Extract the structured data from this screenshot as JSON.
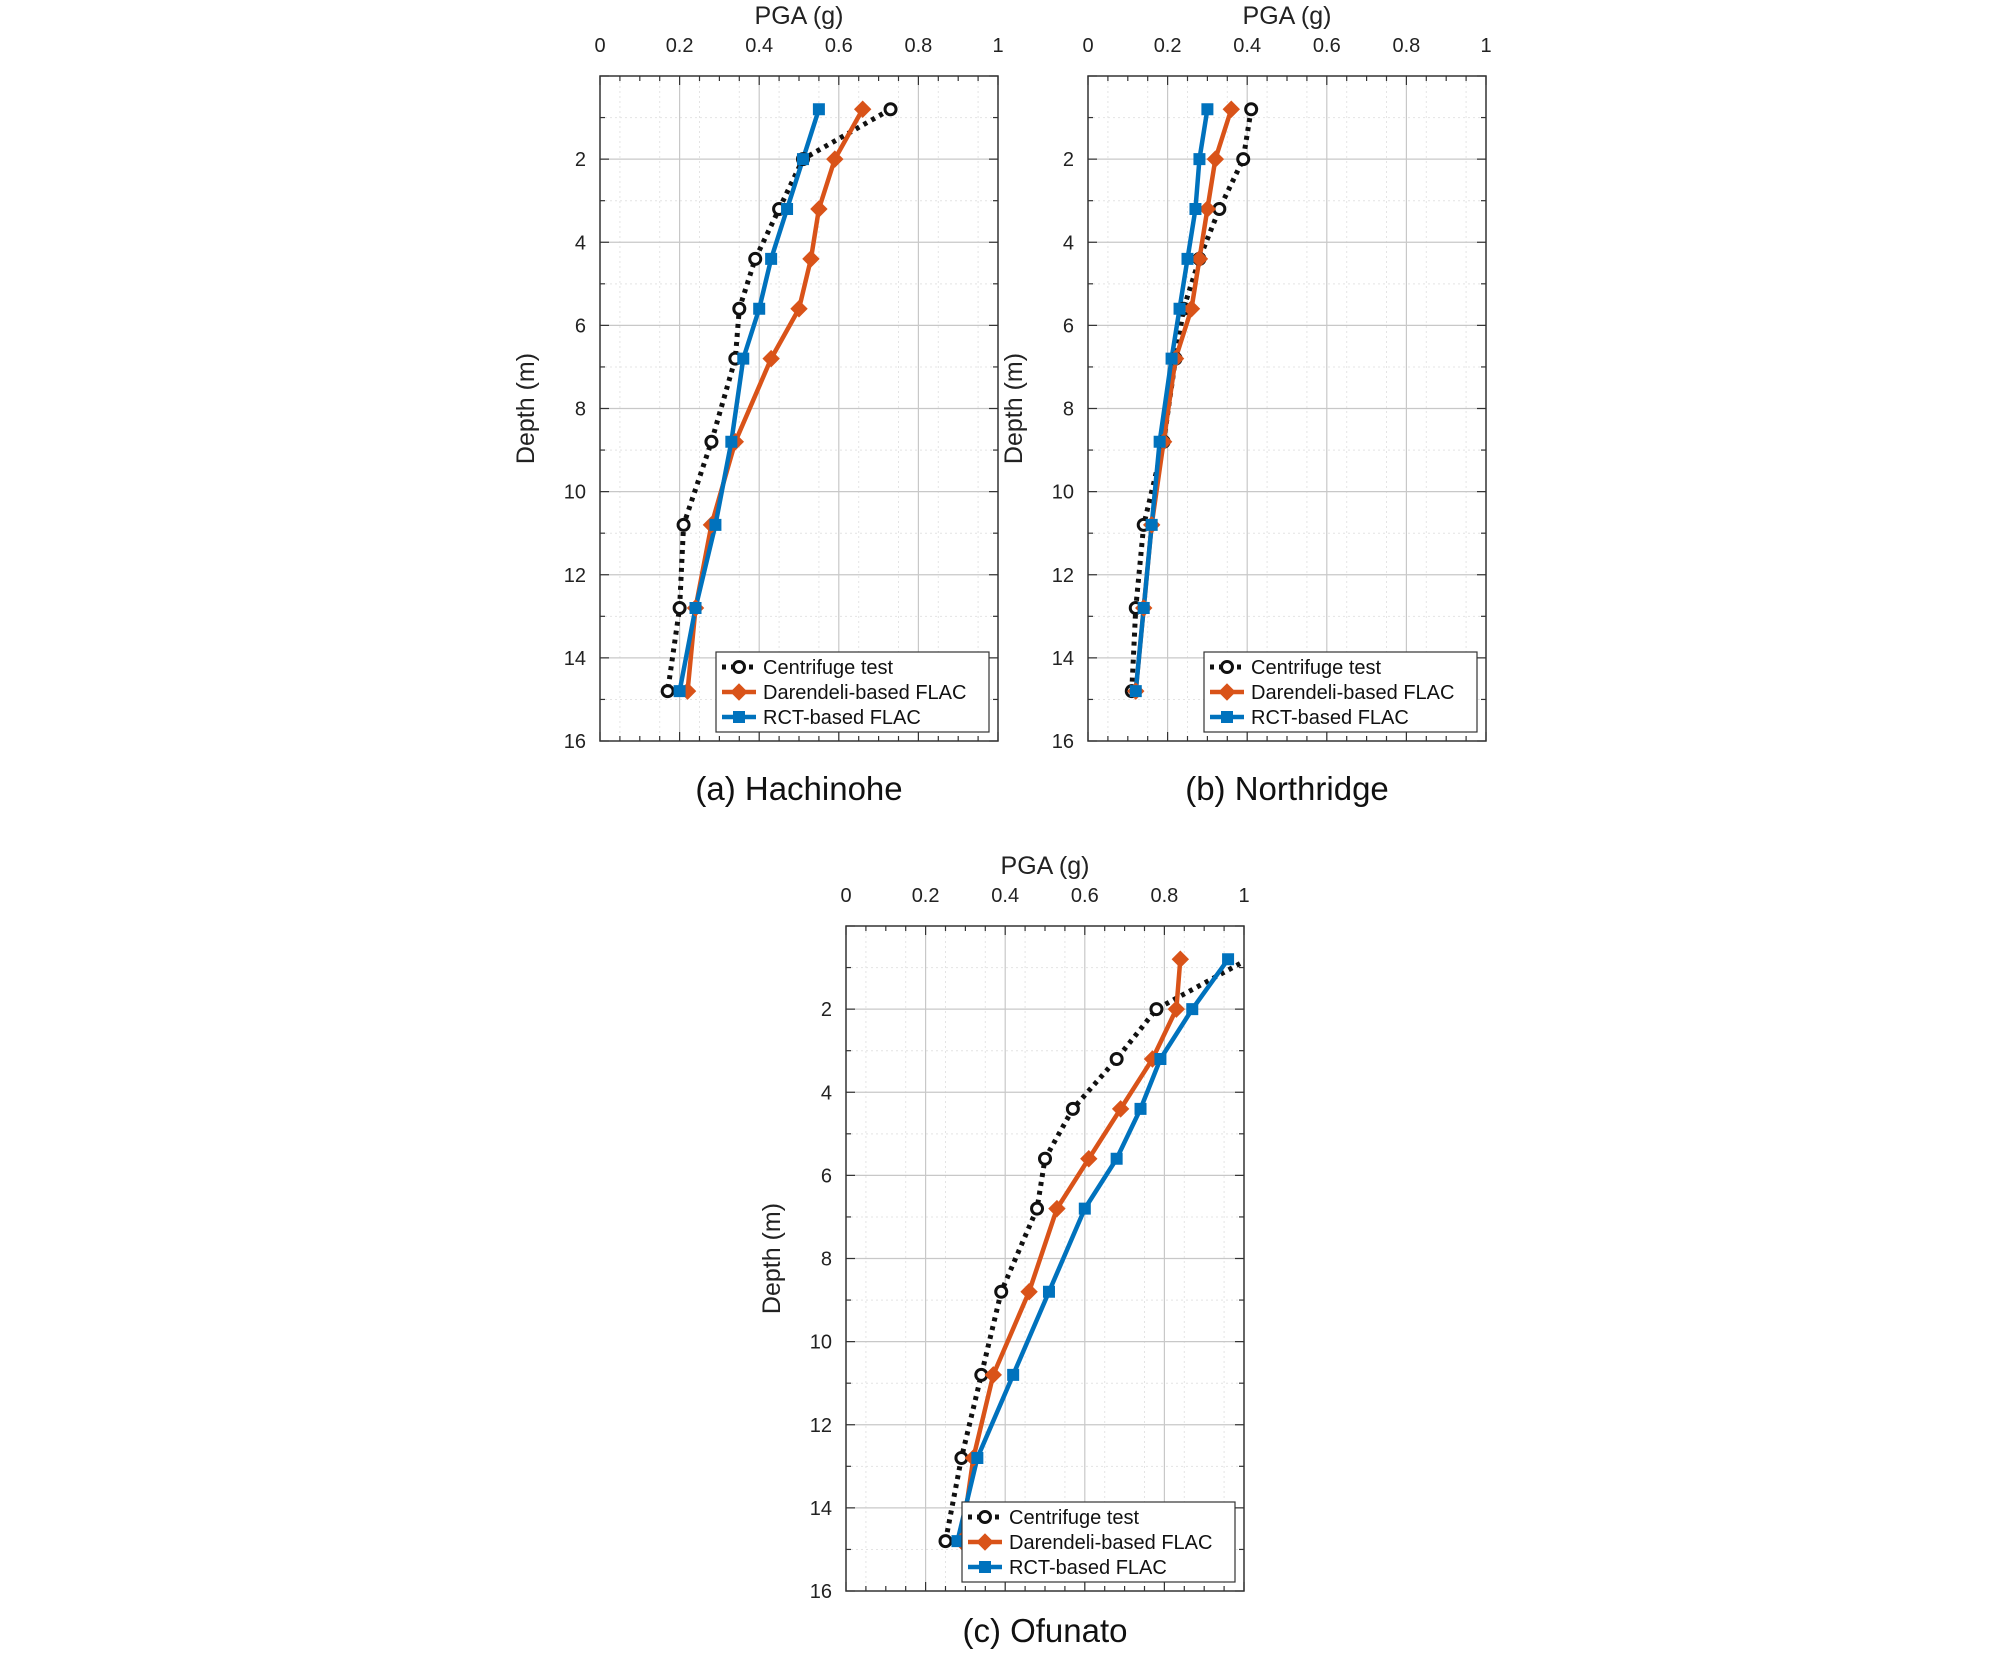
{
  "colors": {
    "centrifuge": "#111111",
    "darendeli": "#d95319",
    "rct": "#0072bd",
    "grid_major": "#c8c8c8",
    "grid_minor": "#e4e4e4",
    "axes": "#333333"
  },
  "chart_data": [
    {
      "type": "line",
      "caption": "(a)  Hachinohe",
      "xlabel": "PGA (g)",
      "ylabel": "Depth (m)",
      "xlim": [
        0,
        1
      ],
      "ylim": [
        0,
        16
      ],
      "y_reversed": true,
      "x_ticks": [
        "0",
        "0.2",
        "0.4",
        "0.6",
        "0.8",
        "1"
      ],
      "y_ticks": [
        "2",
        "4",
        "6",
        "8",
        "10",
        "12",
        "14",
        "16"
      ],
      "x_axis_position": "top",
      "grid": true,
      "legend_position": "bottom-right",
      "depths": [
        0.8,
        2.0,
        3.2,
        4.4,
        5.6,
        6.8,
        8.8,
        10.8,
        12.8,
        14.8
      ],
      "series": [
        {
          "name": "Centrifuge test",
          "style": "dotted",
          "marker": "circle",
          "values": [
            0.73,
            0.51,
            0.45,
            0.39,
            0.35,
            0.34,
            0.28,
            0.21,
            0.2,
            0.17
          ]
        },
        {
          "name": "Darendeli-based FLAC",
          "style": "solid",
          "marker": "diamond",
          "values": [
            0.66,
            0.59,
            0.55,
            0.53,
            0.5,
            0.43,
            0.34,
            0.28,
            0.24,
            0.22
          ]
        },
        {
          "name": "RCT-based FLAC",
          "style": "solid",
          "marker": "square",
          "values": [
            0.55,
            0.51,
            0.47,
            0.43,
            0.4,
            0.36,
            0.33,
            0.29,
            0.24,
            0.2
          ]
        }
      ]
    },
    {
      "type": "line",
      "caption": "(b)  Northridge",
      "xlabel": "PGA (g)",
      "ylabel": "Depth (m)",
      "xlim": [
        0,
        1
      ],
      "ylim": [
        0,
        16
      ],
      "y_reversed": true,
      "x_ticks": [
        "0",
        "0.2",
        "0.4",
        "0.6",
        "0.8",
        "1"
      ],
      "y_ticks": [
        "2",
        "4",
        "6",
        "8",
        "10",
        "12",
        "14",
        "16"
      ],
      "x_axis_position": "top",
      "grid": true,
      "legend_position": "bottom-right",
      "depths": [
        0.8,
        2.0,
        3.2,
        4.4,
        5.6,
        6.8,
        8.8,
        10.8,
        12.8,
        14.8
      ],
      "series": [
        {
          "name": "Centrifuge test",
          "style": "dotted",
          "marker": "circle",
          "values": [
            0.41,
            0.39,
            0.33,
            0.28,
            0.24,
            0.22,
            0.19,
            0.14,
            0.12,
            0.11
          ]
        },
        {
          "name": "Darendeli-based FLAC",
          "style": "solid",
          "marker": "diamond",
          "values": [
            0.36,
            0.32,
            0.3,
            0.28,
            0.26,
            0.22,
            0.19,
            0.16,
            0.14,
            0.12
          ]
        },
        {
          "name": "RCT-based FLAC",
          "style": "solid",
          "marker": "square",
          "values": [
            0.3,
            0.28,
            0.27,
            0.25,
            0.23,
            0.21,
            0.18,
            0.16,
            0.14,
            0.12
          ]
        }
      ]
    },
    {
      "type": "line",
      "caption": "(c)  Ofunato",
      "xlabel": "PGA (g)",
      "ylabel": "Depth (m)",
      "xlim": [
        0,
        1
      ],
      "ylim": [
        0,
        16
      ],
      "y_reversed": true,
      "x_ticks": [
        "0",
        "0.2",
        "0.4",
        "0.6",
        "0.8",
        "1"
      ],
      "y_ticks": [
        "2",
        "4",
        "6",
        "8",
        "10",
        "12",
        "14",
        "16"
      ],
      "x_axis_position": "top",
      "grid": true,
      "legend_position": "bottom-right",
      "depths": [
        0.8,
        2.0,
        3.2,
        4.4,
        5.6,
        6.8,
        8.8,
        10.8,
        12.8,
        14.8
      ],
      "series": [
        {
          "name": "Centrifuge test",
          "style": "dotted",
          "marker": "circle",
          "values": [
            1.01,
            0.78,
            0.68,
            0.57,
            0.5,
            0.48,
            0.39,
            0.34,
            0.29,
            0.25
          ]
        },
        {
          "name": "Darendeli-based FLAC",
          "style": "solid",
          "marker": "diamond",
          "values": [
            0.84,
            0.83,
            0.77,
            0.69,
            0.61,
            0.53,
            0.46,
            0.37,
            0.32,
            0.29
          ]
        },
        {
          "name": "RCT-based FLAC",
          "style": "solid",
          "marker": "square",
          "values": [
            0.96,
            0.87,
            0.79,
            0.74,
            0.68,
            0.6,
            0.51,
            0.42,
            0.33,
            0.28
          ]
        }
      ]
    }
  ]
}
